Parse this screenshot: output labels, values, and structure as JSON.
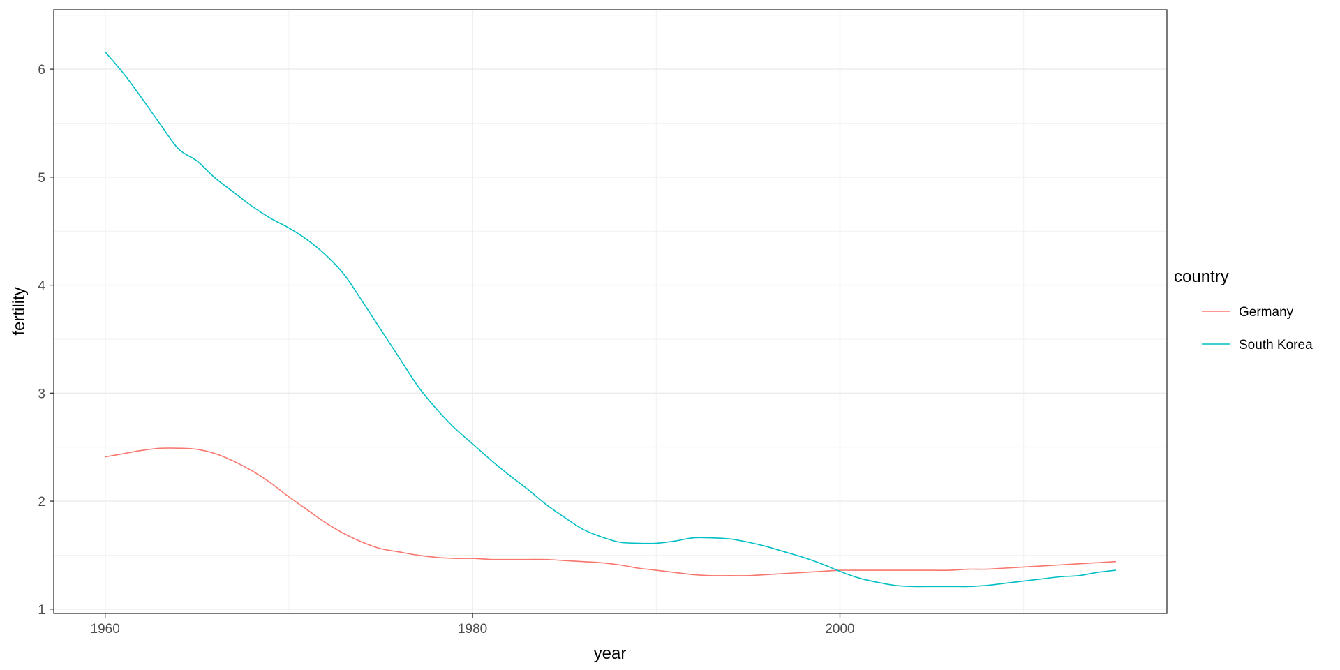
{
  "chart_data": {
    "type": "line",
    "title": "",
    "xlabel": "year",
    "ylabel": "fertility",
    "xlim": [
      1957.2,
      2017.8
    ],
    "ylim": [
      0.96,
      6.55
    ],
    "x_ticks": [
      1960,
      1980,
      2000
    ],
    "x_tick_labels": [
      "1960",
      "1980",
      "2000"
    ],
    "y_ticks": [
      1,
      2,
      3,
      4,
      5,
      6
    ],
    "y_tick_labels": [
      "1",
      "2",
      "3",
      "4",
      "5",
      "6"
    ],
    "grid": true,
    "legend": {
      "title": "country",
      "position": "right"
    },
    "x": [
      1960,
      1961,
      1962,
      1963,
      1964,
      1965,
      1966,
      1967,
      1968,
      1969,
      1970,
      1971,
      1972,
      1973,
      1974,
      1975,
      1976,
      1977,
      1978,
      1979,
      1980,
      1981,
      1982,
      1983,
      1984,
      1985,
      1986,
      1987,
      1988,
      1989,
      1990,
      1991,
      1992,
      1993,
      1994,
      1995,
      1996,
      1997,
      1998,
      1999,
      2000,
      2001,
      2002,
      2003,
      2004,
      2005,
      2006,
      2007,
      2008,
      2009,
      2010,
      2011,
      2012,
      2013,
      2014,
      2015
    ],
    "series": [
      {
        "name": "Germany",
        "color": "#F8766D",
        "values": [
          2.41,
          2.44,
          2.47,
          2.49,
          2.49,
          2.48,
          2.44,
          2.37,
          2.28,
          2.17,
          2.04,
          1.92,
          1.8,
          1.7,
          1.62,
          1.56,
          1.53,
          1.5,
          1.48,
          1.47,
          1.47,
          1.46,
          1.46,
          1.46,
          1.46,
          1.45,
          1.44,
          1.43,
          1.41,
          1.38,
          1.36,
          1.34,
          1.32,
          1.31,
          1.31,
          1.31,
          1.32,
          1.33,
          1.34,
          1.35,
          1.36,
          1.36,
          1.36,
          1.36,
          1.36,
          1.36,
          1.36,
          1.37,
          1.37,
          1.38,
          1.39,
          1.4,
          1.41,
          1.42,
          1.43,
          1.44
        ]
      },
      {
        "name": "South Korea",
        "color": "#00BFC4",
        "values": [
          6.16,
          5.96,
          5.73,
          5.49,
          5.26,
          5.15,
          4.99,
          4.86,
          4.73,
          4.62,
          4.53,
          4.42,
          4.28,
          4.1,
          3.85,
          3.59,
          3.33,
          3.07,
          2.86,
          2.68,
          2.53,
          2.38,
          2.24,
          2.11,
          1.97,
          1.85,
          1.74,
          1.67,
          1.62,
          1.61,
          1.61,
          1.63,
          1.66,
          1.66,
          1.65,
          1.62,
          1.58,
          1.53,
          1.48,
          1.42,
          1.35,
          1.29,
          1.25,
          1.22,
          1.21,
          1.21,
          1.21,
          1.21,
          1.22,
          1.24,
          1.26,
          1.28,
          1.3,
          1.31,
          1.34,
          1.36
        ]
      }
    ]
  }
}
